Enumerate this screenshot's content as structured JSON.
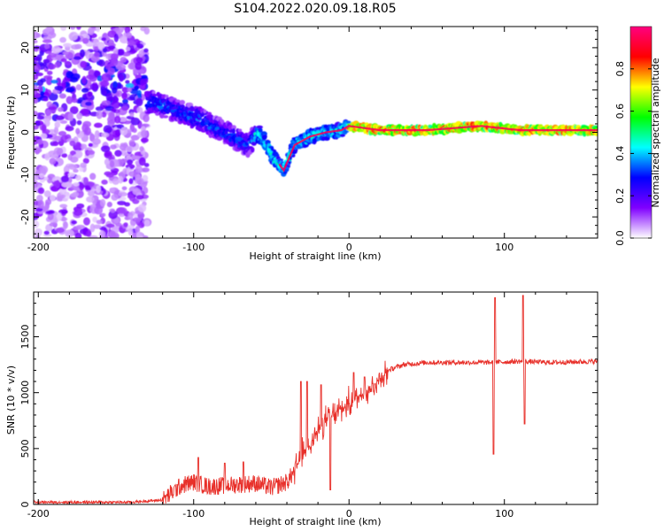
{
  "title": "S104.2022.020.09.18.R05",
  "chart_data": [
    {
      "type": "heatmap",
      "xlabel": "Height of straight line (km)",
      "ylabel": "Frequency (Hz)",
      "xlim": [
        -203,
        160
      ],
      "ylim": [
        -25,
        25
      ],
      "xticks": [
        -200,
        -100,
        0,
        100
      ],
      "yticks": [
        -20,
        -10,
        0,
        10,
        20
      ],
      "colorbar": {
        "label": "Normalized spectral amplitude",
        "range": [
          0,
          1
        ],
        "ticks": [
          "0.0",
          "0.2",
          "0.4",
          "0.6",
          "0.8"
        ],
        "colors": [
          "#ffffff",
          "#8000ff",
          "#0000ff",
          "#00ffff",
          "#00ff00",
          "#ffff00",
          "#ff0000",
          "#ff0080"
        ]
      },
      "ridge": [
        [
          -125,
          7
        ],
        [
          -110,
          5
        ],
        [
          -95,
          3
        ],
        [
          -85,
          1
        ],
        [
          -75,
          -1
        ],
        [
          -65,
          -3
        ],
        [
          -58,
          0
        ],
        [
          -50,
          -5
        ],
        [
          -42,
          -9
        ],
        [
          -35,
          -3
        ],
        [
          -25,
          -1
        ],
        [
          -15,
          0
        ],
        [
          -5,
          0.5
        ],
        [
          0,
          1.5
        ],
        [
          20,
          0.5
        ],
        [
          50,
          0.5
        ],
        [
          85,
          1.5
        ],
        [
          110,
          0.5
        ],
        [
          160,
          0.5
        ]
      ]
    },
    {
      "type": "line",
      "xlabel": "Height of straight line (km)",
      "ylabel": "SNR (10 * v/v)",
      "xlim": [
        -203,
        160
      ],
      "ylim": [
        0,
        1900
      ],
      "xticks": [
        -200,
        -100,
        0,
        100
      ],
      "yticks": [
        0,
        500,
        1000,
        1500
      ],
      "series": [
        {
          "color": "#e8302a",
          "baseline": [
            [
              -203,
              20
            ],
            [
              -140,
              20
            ],
            [
              -120,
              40
            ],
            [
              -108,
              170
            ],
            [
              -100,
              200
            ],
            [
              -90,
              160
            ],
            [
              -80,
              170
            ],
            [
              -70,
              180
            ],
            [
              -60,
              190
            ],
            [
              -50,
              150
            ],
            [
              -40,
              200
            ],
            [
              -35,
              300
            ],
            [
              -30,
              450
            ],
            [
              -25,
              550
            ],
            [
              -20,
              650
            ],
            [
              -15,
              750
            ],
            [
              -10,
              800
            ],
            [
              -5,
              850
            ],
            [
              0,
              900
            ],
            [
              5,
              950
            ],
            [
              10,
              1000
            ],
            [
              15,
              1050
            ],
            [
              20,
              1130
            ],
            [
              25,
              1200
            ],
            [
              35,
              1250
            ],
            [
              50,
              1270
            ],
            [
              70,
              1270
            ],
            [
              90,
              1270
            ],
            [
              110,
              1280
            ],
            [
              130,
              1270
            ],
            [
              160,
              1280
            ]
          ],
          "spikes": [
            [
              -97,
              420
            ],
            [
              -80,
              370
            ],
            [
              -68,
              380
            ],
            [
              -31,
              1100
            ],
            [
              -27,
              1100
            ],
            [
              -18,
              1070
            ],
            [
              -12,
              130
            ],
            [
              3,
              1180
            ],
            [
              10,
              1140
            ],
            [
              94,
              1850
            ],
            [
              93,
              450
            ],
            [
              112,
              1870
            ],
            [
              113,
              720
            ]
          ]
        }
      ]
    }
  ]
}
